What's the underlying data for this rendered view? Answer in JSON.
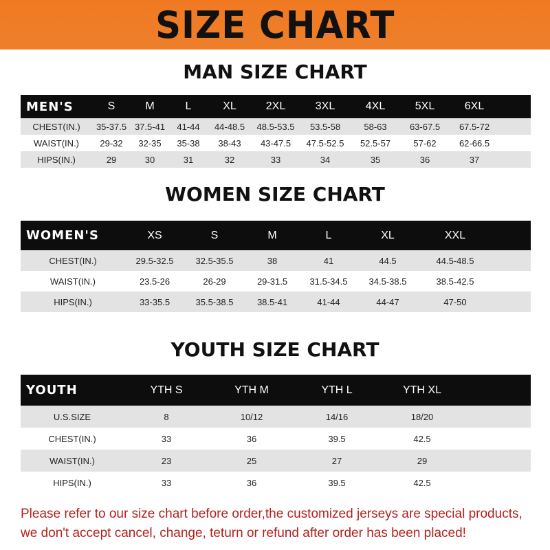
{
  "title": "SIZE CHART",
  "colors": {
    "banner": "#f07a22",
    "header_row": "#0d0d0d",
    "stripe": "#e3e3e3",
    "note": "#b3201c"
  },
  "men": {
    "title": "MAN SIZE CHART",
    "header": [
      "MEN'S",
      "S",
      "M",
      "L",
      "XL",
      "2XL",
      "3XL",
      "4XL",
      "5XL",
      "6XL"
    ],
    "rows": [
      [
        "CHEST(IN.)",
        "35-37.5",
        "37.5-41",
        "41-44",
        "44-48.5",
        "48.5-53.5",
        "53.5-58",
        "58-63",
        "63-67.5",
        "67.5-72"
      ],
      [
        "WAIST(IN.)",
        "29-32",
        "32-35",
        "35-38",
        "38-43",
        "43-47.5",
        "47.5-52.5",
        "52.5-57",
        "57-62",
        "62-66.5"
      ],
      [
        "HIPS(IN.)",
        "29",
        "30",
        "31",
        "32",
        "33",
        "34",
        "35",
        "36",
        "37"
      ]
    ]
  },
  "women": {
    "title": "WOMEN SIZE CHART",
    "header": [
      "WOMEN'S",
      "XS",
      "S",
      "M",
      "L",
      "XL",
      "XXL"
    ],
    "rows": [
      [
        "CHEST(IN.)",
        "29.5-32.5",
        "32.5-35.5",
        "38",
        "41",
        "44.5",
        "44.5-48.5"
      ],
      [
        "WAIST(IN.)",
        "23.5-26",
        "26-29",
        "29-31.5",
        "31.5-34.5",
        "34.5-38.5",
        "38.5-42.5"
      ],
      [
        "HIPS(IN.)",
        "33-35.5",
        "35.5-38.5",
        "38.5-41",
        "41-44",
        "44-47",
        "47-50"
      ]
    ]
  },
  "youth": {
    "title": "YOUTH SIZE CHART",
    "header": [
      "YOUTH",
      "YTH S",
      "YTH M",
      "YTH L",
      "YTH XL"
    ],
    "rows": [
      [
        "U.S.SIZE",
        "8",
        "10/12",
        "14/16",
        "18/20"
      ],
      [
        "CHEST(IN.)",
        "33",
        "36",
        "39.5",
        "42.5"
      ],
      [
        "WAIST(IN.)",
        "23",
        "25",
        "27",
        "29"
      ],
      [
        "HIPS(IN.)",
        "33",
        "36",
        "39.5",
        "42.5"
      ]
    ]
  },
  "note": {
    "line1": "Please refer to our size chart before order,the customized jerseys are special products,",
    "line2": "we don't accept cancel, change, teturn or refund after order has been placed!"
  }
}
